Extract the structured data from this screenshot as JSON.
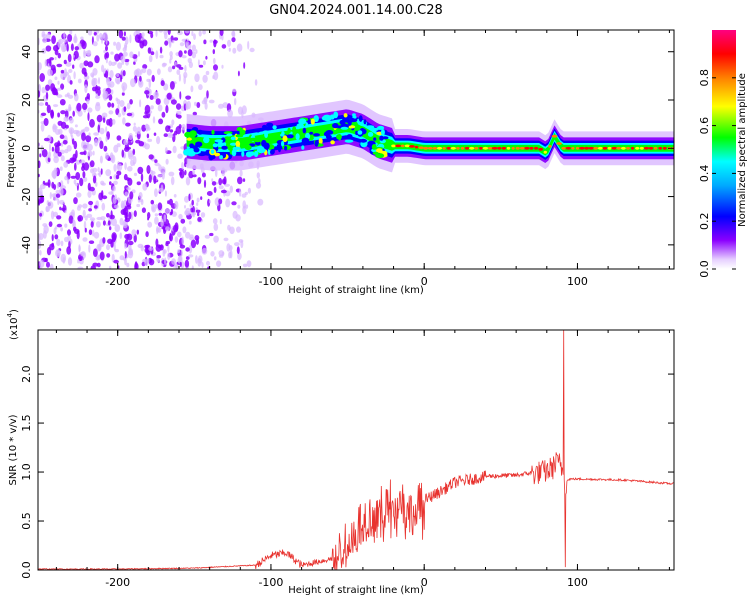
{
  "page_title": "GN04.2024.001.14.00.C28",
  "chart_data": [
    {
      "type": "heatmap",
      "title": "",
      "xlabel": "Height of straight line (km)",
      "ylabel": "Frequency (Hz)",
      "xlim": [
        -252,
        163
      ],
      "ylim": [
        -50,
        49
      ],
      "xticks": [
        -200,
        -100,
        0,
        100
      ],
      "yticks": [
        -40,
        -20,
        0,
        20,
        40
      ],
      "colorbar": {
        "label": "Normalized spectral amplitude",
        "range": [
          0,
          1
        ],
        "ticks": [
          0.0,
          0.2,
          0.4,
          0.6,
          0.8
        ],
        "colormap": [
          "#ffffff",
          "#d9b8ff",
          "#8b00ff",
          "#0000ff",
          "#00ffff",
          "#00ff00",
          "#ffff00",
          "#ff8000",
          "#ff0000",
          "#ff0080"
        ]
      },
      "ridge": {
        "x": [
          -155,
          -140,
          -120,
          -100,
          -80,
          -60,
          -50,
          -40,
          -30,
          -20,
          -10,
          0,
          20,
          40,
          60,
          75,
          80,
          85,
          90,
          100,
          130,
          163
        ],
        "y": [
          3,
          2,
          2,
          4,
          6,
          8,
          9,
          7,
          3,
          1,
          1,
          0,
          0,
          0,
          0,
          0,
          -2,
          5,
          0,
          0,
          0,
          0
        ]
      },
      "noise_region_x": [
        -252,
        -120
      ]
    },
    {
      "type": "line",
      "title": "",
      "xlabel": "Height of straight line (km)",
      "ylabel": "SNR (10 * v/v)",
      "y_multiplier": "(x10",
      "y_multiplier_exp": "4",
      "y_multiplier_close": ")",
      "xlim": [
        -252,
        163
      ],
      "ylim": [
        0,
        2.45
      ],
      "xticks": [
        -200,
        -100,
        0,
        100
      ],
      "yticks": [
        0.0,
        0.5,
        1.0,
        1.5,
        2.0
      ],
      "color": "#e8332f",
      "envelope": {
        "x": [
          -252,
          -200,
          -150,
          -110,
          -100,
          -90,
          -80,
          -60,
          -50,
          -40,
          -30,
          -25,
          -20,
          -15,
          -10,
          0,
          10,
          20,
          40,
          60,
          80,
          88,
          90,
          92,
          95,
          100,
          130,
          163
        ],
        "y": [
          0.01,
          0.01,
          0.02,
          0.05,
          0.15,
          0.18,
          0.05,
          0.12,
          0.28,
          0.55,
          0.6,
          0.7,
          0.8,
          0.75,
          0.6,
          0.72,
          0.8,
          0.9,
          0.96,
          0.97,
          1.02,
          1.1,
          1.05,
          0.9,
          0.93,
          0.93,
          0.92,
          0.88
        ]
      },
      "spikes": [
        {
          "x": 86,
          "y": 1.2
        },
        {
          "x": 91,
          "y": 2.45
        },
        {
          "x": 92,
          "y": 0.03
        }
      ]
    }
  ]
}
